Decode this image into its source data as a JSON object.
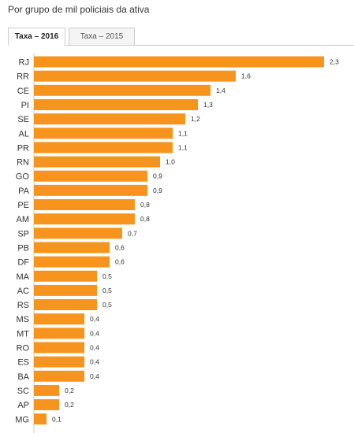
{
  "header": {
    "subtitle": "Por grupo de mil policiais da ativa"
  },
  "tabs": [
    {
      "label": "Taxa – 2016",
      "active": true
    },
    {
      "label": "Taxa – 2015",
      "active": false
    }
  ],
  "colors": {
    "bar": "#f7941d",
    "axis": "#cccccc",
    "label": "#333333"
  },
  "chart_data": {
    "type": "bar",
    "orientation": "horizontal",
    "categories": [
      "RJ",
      "RR",
      "CE",
      "PI",
      "SE",
      "AL",
      "PR",
      "RN",
      "GO",
      "PA",
      "PE",
      "AM",
      "SP",
      "PB",
      "DF",
      "MA",
      "AC",
      "RS",
      "MS",
      "MT",
      "RO",
      "ES",
      "BA",
      "SC",
      "AP",
      "MG"
    ],
    "values": [
      2.3,
      1.6,
      1.4,
      1.3,
      1.2,
      1.1,
      1.1,
      1.0,
      0.9,
      0.9,
      0.8,
      0.8,
      0.7,
      0.6,
      0.6,
      0.5,
      0.5,
      0.5,
      0.4,
      0.4,
      0.4,
      0.4,
      0.4,
      0.2,
      0.2,
      0.1
    ],
    "value_labels": [
      "2,3",
      "1,6",
      "1,4",
      "1,3",
      "1,2",
      "1,1",
      "1,1",
      "1,0",
      "0,9",
      "0,9",
      "0,8",
      "0,8",
      "0,7",
      "0,6",
      "0,6",
      "0,5",
      "0,5",
      "0,5",
      "0,4",
      "0,4",
      "0,4",
      "0,4",
      "0,4",
      "0,2",
      "0,2",
      "0,1"
    ],
    "xlim": [
      0,
      2.3
    ],
    "grid": false,
    "legend": "none"
  }
}
